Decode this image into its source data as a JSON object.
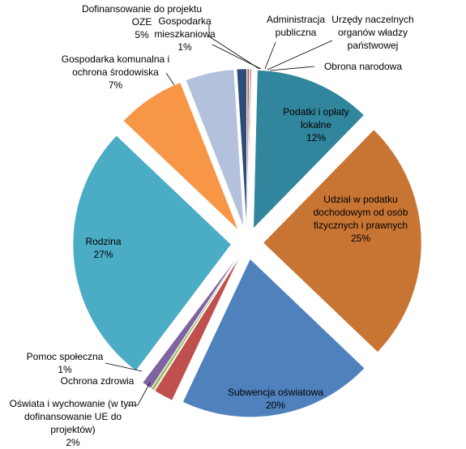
{
  "chart_data": {
    "type": "pie",
    "categories": [
      "Administracja publiczna",
      "Urzędy naczelnych organów władzy państwowej",
      "Obrona narodowa",
      "Podatki i opłaty lokalne",
      "Udział w podatku dochodowym od osób fizycznych i prawnych",
      "Subwencja oświatowa",
      "Oświata i wychowanie (w tym dofinansowanie UE do projektów)",
      "Ochrona zdrowia",
      "Pomoc społeczna",
      "Rodzina",
      "Gospodarka komunalna i ochrona środowiska",
      "Dofinansowanie do projektu OZE",
      "Gospodarka mieszkaniowa"
    ],
    "values": [
      0.2,
      0.1,
      0.1,
      12,
      25,
      20,
      2,
      0.3,
      1,
      27,
      7,
      5,
      1
    ],
    "value_labels": [
      null,
      null,
      null,
      "12%",
      "25%",
      "20%",
      "2%",
      null,
      "1%",
      "27%",
      "7%",
      "5%",
      "1%"
    ],
    "colors": [
      "#c0504d",
      "#9bbb59",
      "#8064a2",
      "#31859c",
      "#c87533",
      "#4f81bd",
      "#c0504d",
      "#9bbb59",
      "#8064a2",
      "#4bacc6",
      "#f79646",
      "#b3c1dc",
      "#2c4d75"
    ]
  }
}
